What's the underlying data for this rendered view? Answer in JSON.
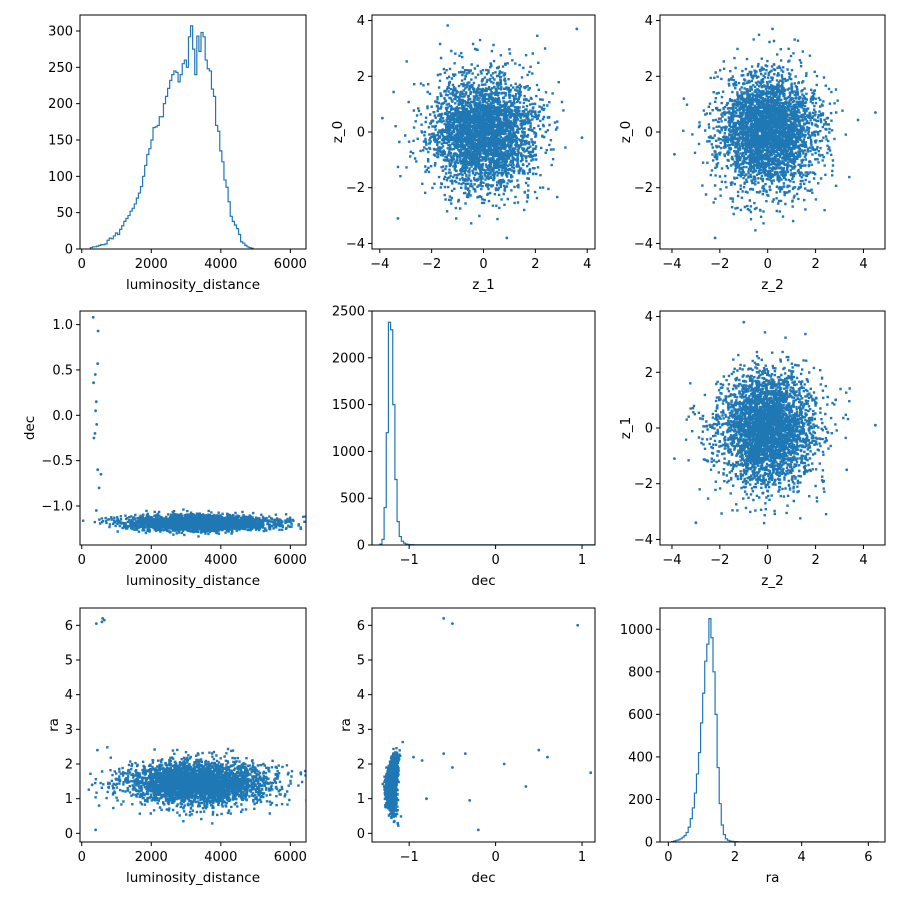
{
  "figure": {
    "color": "#1f77b4"
  },
  "chart_data": [
    {
      "id": "p00",
      "type": "histogram",
      "xlabel": "luminosity_distance",
      "ylabel": "",
      "xlim": [
        -50,
        6450
      ],
      "ylim": [
        0,
        322
      ],
      "xticks": [
        0,
        2000,
        4000,
        6000
      ],
      "xtick_labels": [
        "0",
        "2000",
        "4000",
        "6000"
      ],
      "yticks": [
        0,
        50,
        100,
        150,
        200,
        250,
        300
      ],
      "ytick_labels": [
        "0",
        "50",
        "100",
        "150",
        "200",
        "250",
        "300"
      ],
      "bins": {
        "start": 250,
        "width": 60
      },
      "counts": [
        2,
        3,
        3,
        4,
        5,
        6,
        6,
        7,
        12,
        15,
        14,
        18,
        22,
        20,
        27,
        32,
        38,
        42,
        46,
        52,
        56,
        62,
        70,
        77,
        86,
        100,
        115,
        130,
        138,
        150,
        167,
        168,
        170,
        182,
        182,
        200,
        210,
        221,
        232,
        240,
        245,
        243,
        230,
        240,
        255,
        260,
        250,
        292,
        307,
        275,
        240,
        293,
        272,
        298,
        292,
        260,
        248,
        245,
        220,
        210,
        170,
        162,
        135,
        120,
        95,
        85,
        65,
        45,
        38,
        33,
        28,
        20,
        10,
        8,
        5,
        3,
        2,
        1
      ],
      "series": [
        {
          "name": "",
          "values": []
        }
      ]
    },
    {
      "id": "p01",
      "type": "scatter",
      "xlabel": "z_1",
      "ylabel": "z_0",
      "xlim": [
        -4.3,
        4.3
      ],
      "ylim": [
        -4.2,
        4.2
      ],
      "xticks": [
        -4,
        -2,
        0,
        2,
        4
      ],
      "xtick_labels": [
        "−4",
        "−2",
        "0",
        "2",
        "4"
      ],
      "yticks": [
        -4,
        -2,
        0,
        2,
        4
      ],
      "ytick_labels": [
        "−4",
        "−2",
        "0",
        "2",
        "4"
      ],
      "cloud": {
        "n": 3500,
        "seed": 11,
        "x": {
          "mean": 0,
          "sd": 1
        },
        "y": {
          "mean": 0,
          "sd": 1
        }
      },
      "points": [
        [
          3.8,
          -0.2
        ],
        [
          -3.9,
          0.5
        ],
        [
          3.6,
          3.7
        ],
        [
          -3.3,
          -3.1
        ],
        [
          0.9,
          -3.8
        ]
      ]
    },
    {
      "id": "p02",
      "type": "scatter",
      "xlabel": "z_2",
      "ylabel": "z_0",
      "xlim": [
        -4.5,
        4.9
      ],
      "ylim": [
        -4.2,
        4.2
      ],
      "xticks": [
        -4,
        -2,
        0,
        2,
        4
      ],
      "xtick_labels": [
        "−4",
        "−2",
        "0",
        "2",
        "4"
      ],
      "yticks": [
        -4,
        -2,
        0,
        2,
        4
      ],
      "ytick_labels": [
        "−4",
        "−2",
        "0",
        "2",
        "4"
      ],
      "cloud": {
        "n": 3500,
        "seed": 23,
        "x": {
          "mean": 0,
          "sd": 1
        },
        "y": {
          "mean": 0,
          "sd": 1
        }
      },
      "points": [
        [
          4.5,
          0.7
        ],
        [
          -3.9,
          -0.8
        ],
        [
          -2.2,
          -3.8
        ],
        [
          0.2,
          3.7
        ],
        [
          -3.5,
          1.2
        ]
      ]
    },
    {
      "id": "p10",
      "type": "scatter",
      "xlabel": "luminosity_distance",
      "ylabel": "dec",
      "xlim": [
        -50,
        6450
      ],
      "ylim": [
        -1.43,
        1.15
      ],
      "xticks": [
        0,
        2000,
        4000,
        6000
      ],
      "xtick_labels": [
        "0",
        "2000",
        "4000",
        "6000"
      ],
      "yticks": [
        -1.0,
        -0.5,
        0.0,
        0.5,
        1.0
      ],
      "ytick_labels": [
        "−1.0",
        "−0.5",
        "0.0",
        "0.5",
        "1.0"
      ],
      "cloud": {
        "n": 3500,
        "seed": 37,
        "x": {
          "mean": 3400,
          "sd": 1000
        },
        "y": {
          "mean": -1.19,
          "sd": 0.04
        }
      },
      "points": [
        [
          330,
          1.08
        ],
        [
          470,
          0.93
        ],
        [
          460,
          0.57
        ],
        [
          390,
          0.45
        ],
        [
          340,
          0.36
        ],
        [
          420,
          0.15
        ],
        [
          400,
          0.05
        ],
        [
          430,
          -0.1
        ],
        [
          350,
          -0.25
        ],
        [
          460,
          -0.6
        ],
        [
          500,
          -0.8
        ],
        [
          420,
          -1.05
        ],
        [
          6000,
          -1.15
        ],
        [
          6300,
          -1.25
        ],
        [
          550,
          -0.65
        ],
        [
          380,
          -0.2
        ]
      ]
    },
    {
      "id": "p11",
      "type": "histogram",
      "xlabel": "dec",
      "ylabel": "",
      "xlim": [
        -1.43,
        1.15
      ],
      "ylim": [
        0,
        2500
      ],
      "xticks": [
        -1,
        0,
        1
      ],
      "xtick_labels": [
        "−1",
        "0",
        "1"
      ],
      "yticks": [
        0,
        500,
        1000,
        1500,
        2000,
        2500
      ],
      "ytick_labels": [
        "0",
        "500",
        "1000",
        "1500",
        "2000",
        "2500"
      ],
      "bins": {
        "start": -1.34,
        "width": 0.025
      },
      "counts": [
        10,
        60,
        400,
        1200,
        2380,
        2300,
        1500,
        700,
        250,
        90,
        40,
        20,
        10,
        6,
        4,
        3,
        2,
        2,
        1,
        1,
        1,
        1,
        1,
        1,
        1,
        1,
        1,
        1,
        1,
        1,
        1,
        1,
        1,
        1,
        1,
        1,
        1,
        1,
        1,
        1,
        1,
        1,
        1,
        1,
        1,
        1,
        1,
        1,
        1,
        1,
        1,
        1,
        1,
        1,
        1,
        1,
        1,
        1,
        1,
        1,
        1,
        1,
        1,
        1,
        1,
        1,
        1,
        1,
        1,
        1,
        1,
        1,
        1,
        1,
        1,
        1,
        1,
        1,
        1,
        1,
        1,
        1,
        1,
        1,
        1,
        1,
        1,
        1,
        1,
        1,
        1,
        1,
        1,
        1,
        1,
        1,
        1,
        1,
        1
      ],
      "series": [
        {
          "name": "",
          "values": []
        }
      ]
    },
    {
      "id": "p12",
      "type": "scatter",
      "xlabel": "z_2",
      "ylabel": "z_1",
      "xlim": [
        -4.5,
        4.9
      ],
      "ylim": [
        -4.2,
        4.2
      ],
      "xticks": [
        -4,
        -2,
        0,
        2,
        4
      ],
      "xtick_labels": [
        "−4",
        "−2",
        "0",
        "2",
        "4"
      ],
      "yticks": [
        -4,
        -2,
        0,
        2,
        4
      ],
      "ytick_labels": [
        "−4",
        "−2",
        "0",
        "2",
        "4"
      ],
      "cloud": {
        "n": 3500,
        "seed": 53,
        "x": {
          "mean": 0,
          "sd": 1
        },
        "y": {
          "mean": 0,
          "sd": 1
        }
      },
      "points": [
        [
          4.5,
          0.1
        ],
        [
          -3.9,
          -1.1
        ],
        [
          -1.0,
          3.8
        ],
        [
          -3.0,
          -3.4
        ],
        [
          3.3,
          -1.5
        ]
      ]
    },
    {
      "id": "p20",
      "type": "scatter",
      "xlabel": "luminosity_distance",
      "ylabel": "ra",
      "xlim": [
        -50,
        6450
      ],
      "ylim": [
        -0.25,
        6.5
      ],
      "xticks": [
        0,
        2000,
        4000,
        6000
      ],
      "xtick_labels": [
        "0",
        "2000",
        "4000",
        "6000"
      ],
      "yticks": [
        0,
        1,
        2,
        3,
        4,
        5,
        6
      ],
      "ytick_labels": [
        "0",
        "1",
        "2",
        "3",
        "4",
        "5",
        "6"
      ],
      "cloud": {
        "n": 3500,
        "seed": 71,
        "x": {
          "mean": 3400,
          "sd": 1000
        },
        "y": {
          "mean": 1.45,
          "sd": 0.3
        }
      },
      "points": [
        [
          420,
          6.05
        ],
        [
          580,
          6.1
        ],
        [
          600,
          6.2
        ],
        [
          650,
          6.15
        ],
        [
          6300,
          1.75
        ],
        [
          400,
          0.1
        ],
        [
          450,
          2.4
        ],
        [
          300,
          1.4
        ],
        [
          500,
          0.8
        ]
      ]
    },
    {
      "id": "p21",
      "type": "scatter",
      "xlabel": "dec",
      "ylabel": "ra",
      "xlim": [
        -1.43,
        1.15
      ],
      "ylim": [
        -0.25,
        6.5
      ],
      "xticks": [
        -1,
        0,
        1
      ],
      "xtick_labels": [
        "−1",
        "0",
        "1"
      ],
      "yticks": [
        0,
        1,
        2,
        3,
        4,
        5,
        6
      ],
      "ytick_labels": [
        "0",
        "1",
        "2",
        "3",
        "4",
        "5",
        "6"
      ],
      "cloud": {
        "n": 2200,
        "seed": 89,
        "x": {
          "mean": -1.19,
          "sd": 0.045
        },
        "y": {
          "mean": 1.45,
          "sd": 0.35
        }
      },
      "points": [
        [
          -0.6,
          6.2
        ],
        [
          -0.5,
          6.05
        ],
        [
          0.95,
          6.0
        ],
        [
          -0.95,
          2.2
        ],
        [
          -0.85,
          2.1
        ],
        [
          -0.6,
          2.3
        ],
        [
          -0.35,
          2.3
        ],
        [
          0.1,
          2.0
        ],
        [
          0.5,
          2.4
        ],
        [
          0.6,
          2.2
        ],
        [
          1.1,
          1.75
        ],
        [
          0.35,
          1.35
        ],
        [
          -0.2,
          0.1
        ],
        [
          -0.5,
          1.9
        ],
        [
          -0.3,
          0.95
        ],
        [
          -0.8,
          1.0
        ]
      ]
    },
    {
      "id": "p22",
      "type": "histogram",
      "xlabel": "ra",
      "ylabel": "",
      "xlim": [
        -0.25,
        6.5
      ],
      "ylim": [
        0,
        1100
      ],
      "xticks": [
        0,
        2,
        4,
        6
      ],
      "xtick_labels": [
        "0",
        "2",
        "4",
        "6"
      ],
      "yticks": [
        0,
        200,
        400,
        600,
        800,
        1000
      ],
      "ytick_labels": [
        "0",
        "200",
        "400",
        "600",
        "800",
        "1000"
      ],
      "bins": {
        "start": 0.1,
        "width": 0.062
      },
      "counts": [
        2,
        5,
        8,
        10,
        15,
        22,
        30,
        45,
        70,
        110,
        160,
        230,
        320,
        420,
        560,
        700,
        850,
        930,
        1050,
        960,
        800,
        600,
        350,
        180,
        80,
        35,
        15,
        8,
        4,
        3,
        2,
        2,
        1,
        1,
        1,
        1,
        1,
        1,
        1,
        1,
        1,
        1,
        1,
        1,
        1,
        1,
        1,
        1,
        1,
        1,
        1,
        1,
        1,
        1,
        1,
        1,
        1,
        1,
        1,
        1,
        1,
        1,
        1,
        1,
        1,
        1,
        1,
        1,
        1,
        1,
        1,
        1,
        1,
        1,
        1,
        1,
        1,
        1,
        1,
        1,
        1,
        1,
        1,
        1,
        1,
        1,
        1,
        1,
        1,
        1,
        1,
        1,
        1,
        1,
        1,
        1,
        1,
        1,
        1,
        1
      ],
      "series": [
        {
          "name": "",
          "values": []
        }
      ]
    }
  ]
}
